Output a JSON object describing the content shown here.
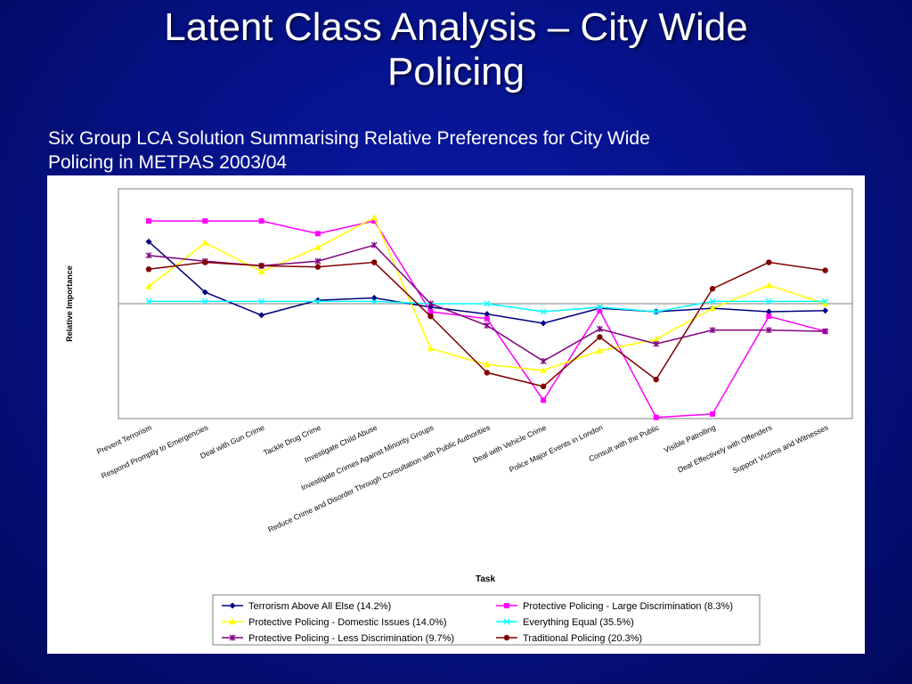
{
  "slide": {
    "title_line1": "Latent Class Analysis – City Wide",
    "title_line2": "Policing",
    "subtitle_line1": "Six Group LCA Solution Summarising Relative Preferences for City Wide",
    "subtitle_line2": "Policing in METPAS 2003/04"
  },
  "chart_data": {
    "type": "line",
    "title": "",
    "xlabel": "Task",
    "ylabel": "Relative Importance",
    "categories": [
      "Prevent Terrorism",
      "Respond Promptly to Emergencies",
      "Deal with Gun Crime",
      "Tackle Drug Crime",
      "Investigate Child Abuse",
      "Investigate Crimes Against Minority Groups",
      "Reduce Crime and Disorder Through Consultation with Public Authorities",
      "Deal with Vehicle Crime",
      "Police Major Events in London",
      "Consult with the Public",
      "Visible Patrolling",
      "Deal Effectively with Offenders",
      "Support Victims and Witnesses"
    ],
    "ylim": [
      -1.0,
      1.0
    ],
    "zero_line": true,
    "grid": false,
    "legend_position": "bottom",
    "series": [
      {
        "name": "Terrorism Above All Else (14.2%)",
        "color": "#000080",
        "marker": "diamond",
        "values": [
          0.54,
          0.1,
          -0.1,
          0.03,
          0.05,
          -0.03,
          -0.09,
          -0.17,
          -0.04,
          -0.07,
          -0.04,
          -0.07,
          -0.06
        ]
      },
      {
        "name": "Protective Policing - Large Discrimination (8.3%)",
        "color": "#ff00ff",
        "marker": "square",
        "values": [
          0.72,
          0.72,
          0.72,
          0.61,
          0.72,
          -0.07,
          -0.13,
          -0.84,
          -0.06,
          -0.99,
          -0.96,
          -0.11,
          -0.24
        ]
      },
      {
        "name": "Protective Policing - Domestic Issues (14.0%)",
        "color": "#ffff00",
        "marker": "triangle",
        "values": [
          0.15,
          0.53,
          0.28,
          0.49,
          0.75,
          -0.39,
          -0.53,
          -0.58,
          -0.41,
          -0.31,
          -0.04,
          0.16,
          0.0
        ]
      },
      {
        "name": "Everything Equal (35.5%)",
        "color": "#00ffff",
        "marker": "x",
        "values": [
          0.02,
          0.02,
          0.02,
          0.02,
          0.02,
          0.0,
          0.0,
          -0.07,
          -0.03,
          -0.07,
          0.02,
          0.02,
          0.02
        ]
      },
      {
        "name": "Protective Policing - Less Discrimination (9.7%)",
        "color": "#800080",
        "marker": "star",
        "values": [
          0.42,
          0.37,
          0.33,
          0.37,
          0.51,
          0.0,
          -0.19,
          -0.5,
          -0.22,
          -0.35,
          -0.23,
          -0.23,
          -0.24
        ]
      },
      {
        "name": "Traditional Policing (20.3%)",
        "color": "#800000",
        "marker": "circle",
        "values": [
          0.3,
          0.36,
          0.33,
          0.32,
          0.36,
          -0.11,
          -0.6,
          -0.72,
          -0.29,
          -0.66,
          0.13,
          0.36,
          0.29
        ]
      }
    ]
  }
}
